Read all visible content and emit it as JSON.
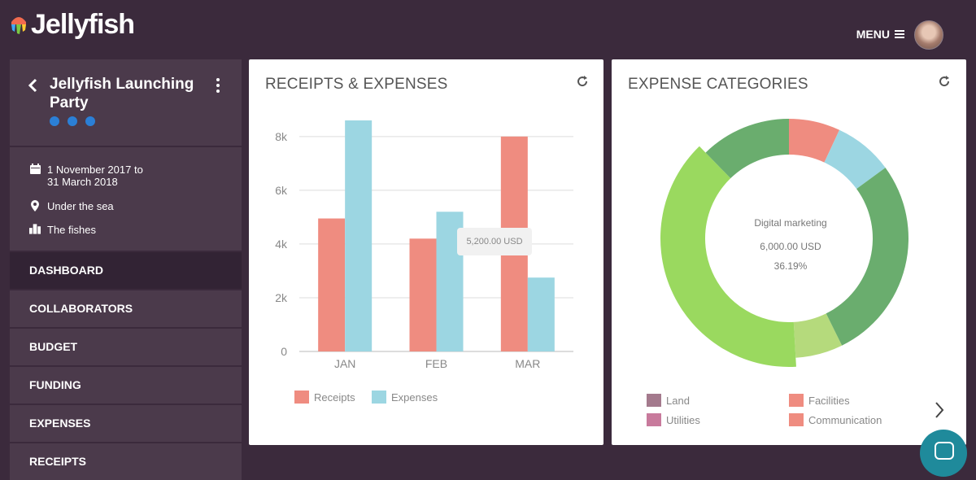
{
  "header": {
    "logo_text": "Jellyfish",
    "menu_label": "MENU"
  },
  "project": {
    "title": "Jellyfish Launching Party",
    "date_line1": "1 November 2017 to",
    "date_line2": "31 March 2018",
    "location": "Under the sea",
    "organization": "The fishes"
  },
  "nav": [
    {
      "label": "DASHBOARD",
      "active": true
    },
    {
      "label": "COLLABORATORS"
    },
    {
      "label": "BUDGET"
    },
    {
      "label": "FUNDING"
    },
    {
      "label": "EXPENSES"
    },
    {
      "label": "RECEIPTS"
    }
  ],
  "receipts_card": {
    "title": "RECEIPTS & EXPENSES",
    "tooltip": "5,200.00 USD"
  },
  "categories_card": {
    "title": "EXPENSE CATEGORIES",
    "center_label": "Digital marketing",
    "center_value": "6,000.00 USD",
    "center_percent": "36.19%",
    "legend": [
      {
        "label": "Land",
        "color": "#a47a8d"
      },
      {
        "label": "Facilities",
        "color": "#ef8c80"
      },
      {
        "label": "Utilities",
        "color": "#c87a9c"
      },
      {
        "label": "Communication",
        "color": "#ef8c80"
      }
    ]
  },
  "chart_data": [
    {
      "type": "bar",
      "title": "RECEIPTS & EXPENSES",
      "categories": [
        "JAN",
        "FEB",
        "MAR"
      ],
      "series": [
        {
          "name": "Receipts",
          "color": "#ef8c80",
          "values": [
            4950,
            4200,
            8000
          ]
        },
        {
          "name": "Expenses",
          "color": "#9cd6e2",
          "values": [
            8600,
            5200,
            2750
          ]
        }
      ],
      "yticks": [
        "0",
        "2k",
        "4k",
        "6k",
        "8k"
      ],
      "ylim": [
        0,
        8600
      ],
      "grid": true,
      "legend": "bottom-left"
    },
    {
      "type": "pie",
      "title": "EXPENSE CATEGORIES",
      "donut": true,
      "slices": [
        {
          "value": 6.5,
          "color": "#ef8c80"
        },
        {
          "value": 7.5,
          "color": "#9cd6e2"
        },
        {
          "value": 26,
          "color": "#6aad6e"
        },
        {
          "value": 6,
          "color": "#b5da7c"
        },
        {
          "label": "Digital marketing",
          "value": 36.19,
          "color": "#9ad95f",
          "highlight": true
        },
        {
          "value": 11.5,
          "color": "#6aad6e"
        }
      ]
    }
  ]
}
